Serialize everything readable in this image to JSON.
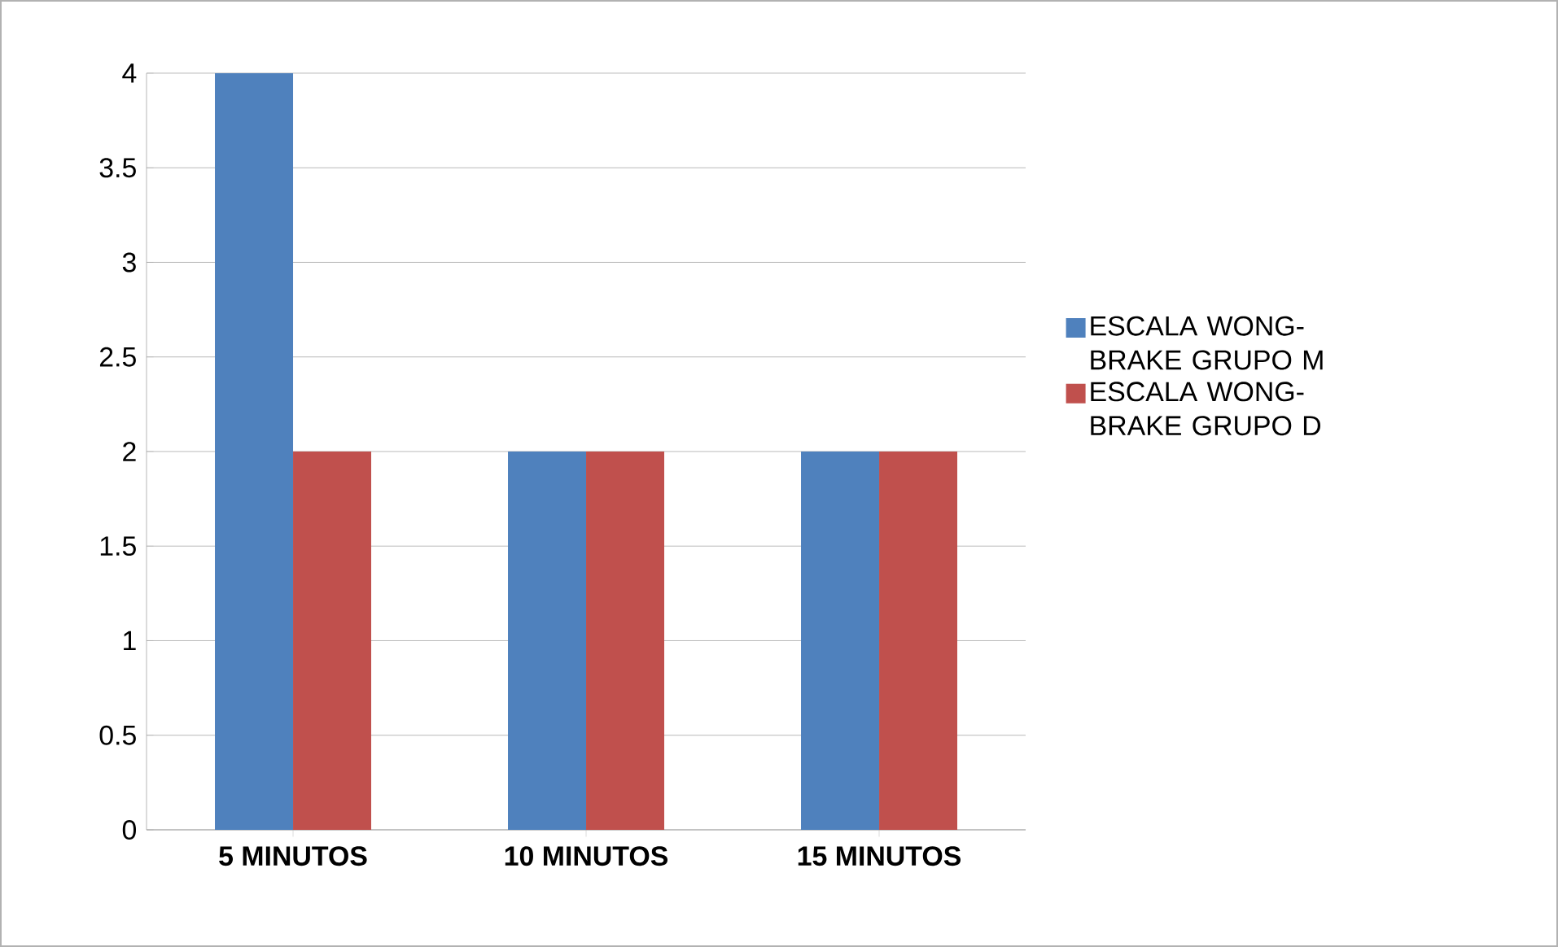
{
  "chart_data": {
    "type": "bar",
    "categories": [
      "5 MINUTOS",
      "10 MINUTOS",
      "15 MINUTOS"
    ],
    "series": [
      {
        "name": "ESCALA WONG-BRAKE GRUPO M",
        "color": "#4f81bd",
        "values": [
          4,
          2,
          2
        ]
      },
      {
        "name": "ESCALA WONG-BRAKE GRUPO D",
        "color": "#c0504d",
        "values": [
          2,
          2,
          2
        ]
      }
    ],
    "ylim": [
      0,
      4
    ],
    "yticks": [
      0,
      0.5,
      1,
      1.5,
      2,
      2.5,
      3,
      3.5,
      4
    ],
    "grid": "y",
    "legend": "right"
  }
}
